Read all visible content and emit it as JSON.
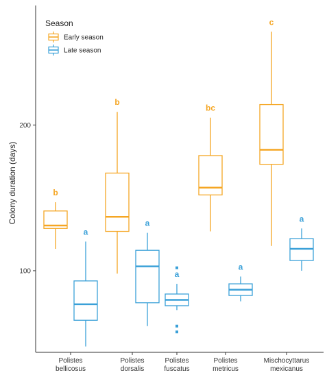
{
  "chart_data": {
    "type": "boxplot",
    "ylabel": "Colony duration (days)",
    "yticks": [
      100,
      200
    ],
    "ylim": [
      44,
      282
    ],
    "categories": [
      "Polistes\nbellicosus",
      "Polistes\ndorsalis",
      "Polistes\nfuscatus",
      "Polistes\nmetricus",
      "Mischocyttarus\nmexicanus"
    ],
    "legend": {
      "title": "Season",
      "position": "top-left",
      "entries": [
        {
          "name": "Early season",
          "color": "#F5A623"
        },
        {
          "name": "Late season",
          "color": "#3AA0D8"
        }
      ]
    },
    "series": [
      {
        "name": "Early season",
        "color": "#F5A623",
        "boxes": [
          {
            "category": "Polistes\nbellicosus",
            "whisker_low": 115,
            "q1": 129,
            "median": 131,
            "q3": 141,
            "whisker_high": 147,
            "outliers": [],
            "label": "b"
          },
          {
            "category": "Polistes\ndorsalis",
            "whisker_low": 98,
            "q1": 127,
            "median": 137,
            "q3": 167,
            "whisker_high": 209,
            "outliers": [],
            "label": "b"
          },
          null,
          {
            "category": "Polistes\nmetricus",
            "whisker_low": 127,
            "q1": 152,
            "median": 157,
            "q3": 179,
            "whisker_high": 205,
            "outliers": [],
            "label": "bc"
          },
          {
            "category": "Mischocyttarus\nmexicanus",
            "whisker_low": 117,
            "q1": 173,
            "median": 183,
            "q3": 214,
            "whisker_high": 264,
            "outliers": [],
            "label": "c"
          }
        ]
      },
      {
        "name": "Late season",
        "color": "#3AA0D8",
        "boxes": [
          {
            "category": "Polistes\nbellicosus",
            "whisker_low": 48,
            "q1": 66,
            "median": 77,
            "q3": 93,
            "whisker_high": 120,
            "outliers": [],
            "label": "a"
          },
          {
            "category": "Polistes\ndorsalis",
            "whisker_low": 62,
            "q1": 78,
            "median": 103,
            "q3": 114,
            "whisker_high": 126,
            "outliers": [],
            "label": "a"
          },
          {
            "category": "Polistes\nfuscatus",
            "whisker_low": 73,
            "q1": 76,
            "median": 80,
            "q3": 84,
            "whisker_high": 91,
            "outliers": [
              102,
              62,
              58
            ],
            "label": "a"
          },
          {
            "category": "Polistes\nmetricus",
            "whisker_low": 79,
            "q1": 83,
            "median": 87,
            "q3": 91,
            "whisker_high": 96,
            "outliers": [],
            "label": "a"
          },
          {
            "category": "Mischocyttarus\nmexicanus",
            "whisker_low": 100,
            "q1": 107,
            "median": 115,
            "q3": 122,
            "whisker_high": 129,
            "outliers": [],
            "label": "a"
          }
        ]
      }
    ]
  }
}
